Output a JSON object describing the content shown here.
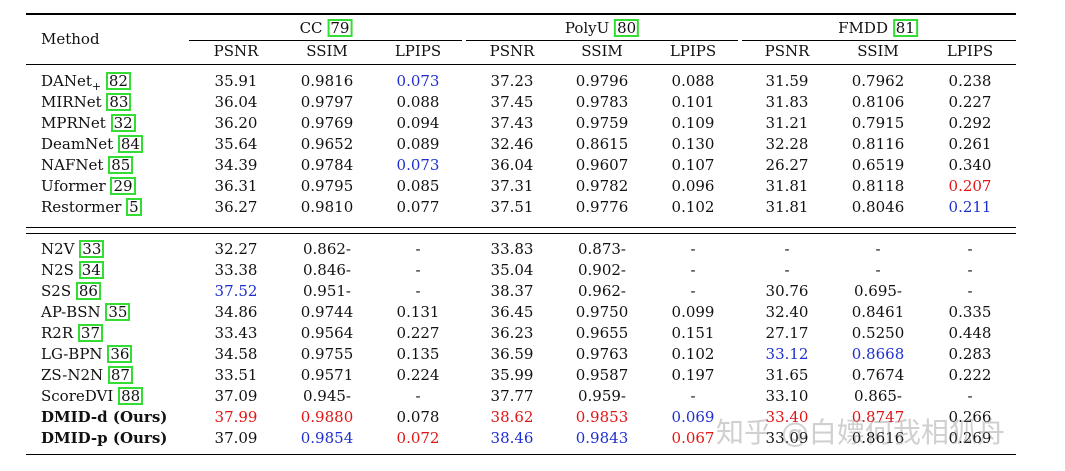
{
  "header": {
    "method_label": "Method",
    "groups": [
      {
        "name": "CC",
        "ref": "79"
      },
      {
        "name": "PolyU",
        "ref": "80"
      },
      {
        "name": "FMDD",
        "ref": "81"
      }
    ],
    "metrics": [
      "PSNR",
      "SSIM",
      "LPIPS"
    ]
  },
  "sections": [
    {
      "rows": [
        {
          "name": "DANet",
          "sub": "+",
          "ref": "82",
          "vals": [
            "35.91",
            "0.9816",
            "0.073",
            "37.23",
            "0.9796",
            "0.088",
            "31.59",
            "0.7962",
            "0.238"
          ],
          "colors": [
            "",
            "",
            "blue",
            "",
            "",
            "",
            "",
            "",
            ""
          ]
        },
        {
          "name": "MIRNet",
          "sub": "",
          "ref": "83",
          "vals": [
            "36.04",
            "0.9797",
            "0.088",
            "37.45",
            "0.9783",
            "0.101",
            "31.83",
            "0.8106",
            "0.227"
          ],
          "colors": [
            "",
            "",
            "",
            "",
            "",
            "",
            "",
            "",
            ""
          ]
        },
        {
          "name": "MPRNet",
          "sub": "",
          "ref": "32",
          "vals": [
            "36.20",
            "0.9769",
            "0.094",
            "37.43",
            "0.9759",
            "0.109",
            "31.21",
            "0.7915",
            "0.292"
          ],
          "colors": [
            "",
            "",
            "",
            "",
            "",
            "",
            "",
            "",
            ""
          ]
        },
        {
          "name": "DeamNet",
          "sub": "",
          "ref": "84",
          "vals": [
            "35.64",
            "0.9652",
            "0.089",
            "32.46",
            "0.8615",
            "0.130",
            "32.28",
            "0.8116",
            "0.261"
          ],
          "colors": [
            "",
            "",
            "",
            "",
            "",
            "",
            "",
            "",
            ""
          ]
        },
        {
          "name": "NAFNet",
          "sub": "",
          "ref": "85",
          "vals": [
            "34.39",
            "0.9784",
            "0.073",
            "36.04",
            "0.9607",
            "0.107",
            "26.27",
            "0.6519",
            "0.340"
          ],
          "colors": [
            "",
            "",
            "blue",
            "",
            "",
            "",
            "",
            "",
            ""
          ]
        },
        {
          "name": "Uformer",
          "sub": "",
          "ref": "29",
          "vals": [
            "36.31",
            "0.9795",
            "0.085",
            "37.31",
            "0.9782",
            "0.096",
            "31.81",
            "0.8118",
            "0.207"
          ],
          "colors": [
            "",
            "",
            "",
            "",
            "",
            "",
            "",
            "",
            "red"
          ]
        },
        {
          "name": "Restormer",
          "sub": "",
          "ref": "5",
          "vals": [
            "36.27",
            "0.9810",
            "0.077",
            "37.51",
            "0.9776",
            "0.102",
            "31.81",
            "0.8046",
            "0.211"
          ],
          "colors": [
            "",
            "",
            "",
            "",
            "",
            "",
            "",
            "",
            "blue"
          ]
        }
      ]
    },
    {
      "rows": [
        {
          "name": "N2V",
          "sub": "",
          "ref": "33",
          "vals": [
            "32.27",
            "0.862-",
            "-",
            "33.83",
            "0.873-",
            "-",
            "-",
            "-",
            "-"
          ],
          "colors": [
            "",
            "",
            "",
            "",
            "",
            "",
            "",
            "",
            ""
          ]
        },
        {
          "name": "N2S",
          "sub": "",
          "ref": "34",
          "vals": [
            "33.38",
            "0.846-",
            "-",
            "35.04",
            "0.902-",
            "-",
            "-",
            "-",
            "-"
          ],
          "colors": [
            "",
            "",
            "",
            "",
            "",
            "",
            "",
            "",
            ""
          ]
        },
        {
          "name": "S2S",
          "sub": "",
          "ref": "86",
          "vals": [
            "37.52",
            "0.951-",
            "-",
            "38.37",
            "0.962-",
            "-",
            "30.76",
            "0.695-",
            "-"
          ],
          "colors": [
            "blue",
            "",
            "",
            "",
            "",
            "",
            "",
            "",
            ""
          ]
        },
        {
          "name": "AP-BSN",
          "sub": "",
          "ref": "35",
          "vals": [
            "34.86",
            "0.9744",
            "0.131",
            "36.45",
            "0.9750",
            "0.099",
            "32.40",
            "0.8461",
            "0.335"
          ],
          "colors": [
            "",
            "",
            "",
            "",
            "",
            "",
            "",
            "",
            ""
          ]
        },
        {
          "name": "R2R",
          "sub": "",
          "ref": "37",
          "vals": [
            "33.43",
            "0.9564",
            "0.227",
            "36.23",
            "0.9655",
            "0.151",
            "27.17",
            "0.5250",
            "0.448"
          ],
          "colors": [
            "",
            "",
            "",
            "",
            "",
            "",
            "",
            "",
            ""
          ]
        },
        {
          "name": "LG-BPN",
          "sub": "",
          "ref": "36",
          "vals": [
            "34.58",
            "0.9755",
            "0.135",
            "36.59",
            "0.9763",
            "0.102",
            "33.12",
            "0.8668",
            "0.283"
          ],
          "colors": [
            "",
            "",
            "",
            "",
            "",
            "",
            "blue",
            "blue",
            ""
          ]
        },
        {
          "name": "ZS-N2N",
          "sub": "",
          "ref": "87",
          "vals": [
            "33.51",
            "0.9571",
            "0.224",
            "35.99",
            "0.9587",
            "0.197",
            "31.65",
            "0.7674",
            "0.222"
          ],
          "colors": [
            "",
            "",
            "",
            "",
            "",
            "",
            "",
            "",
            ""
          ]
        },
        {
          "name": "ScoreDVI",
          "sub": "",
          "ref": "88",
          "vals": [
            "37.09",
            "0.945-",
            "-",
            "37.77",
            "0.959-",
            "-",
            "33.10",
            "0.865-",
            "-"
          ],
          "colors": [
            "",
            "",
            "",
            "",
            "",
            "",
            "",
            "",
            ""
          ]
        },
        {
          "name": "DMID-d (Ours)",
          "sub": "",
          "ref": "",
          "bold": true,
          "vals": [
            "37.99",
            "0.9880",
            "0.078",
            "38.62",
            "0.9853",
            "0.069",
            "33.40",
            "0.8747",
            "0.266"
          ],
          "colors": [
            "red",
            "red",
            "",
            "red",
            "red",
            "blue",
            "red",
            "red",
            ""
          ]
        },
        {
          "name": "DMID-p (Ours)",
          "sub": "",
          "ref": "",
          "bold": true,
          "vals": [
            "37.09",
            "0.9854",
            "0.072",
            "38.46",
            "0.9843",
            "0.067",
            "33.09",
            "0.8616",
            "0.269"
          ],
          "colors": [
            "",
            "blue",
            "red",
            "blue",
            "blue",
            "red",
            "",
            "",
            ""
          ]
        }
      ]
    }
  ],
  "watermark": "知乎 @白嫖何我相狐舟"
}
